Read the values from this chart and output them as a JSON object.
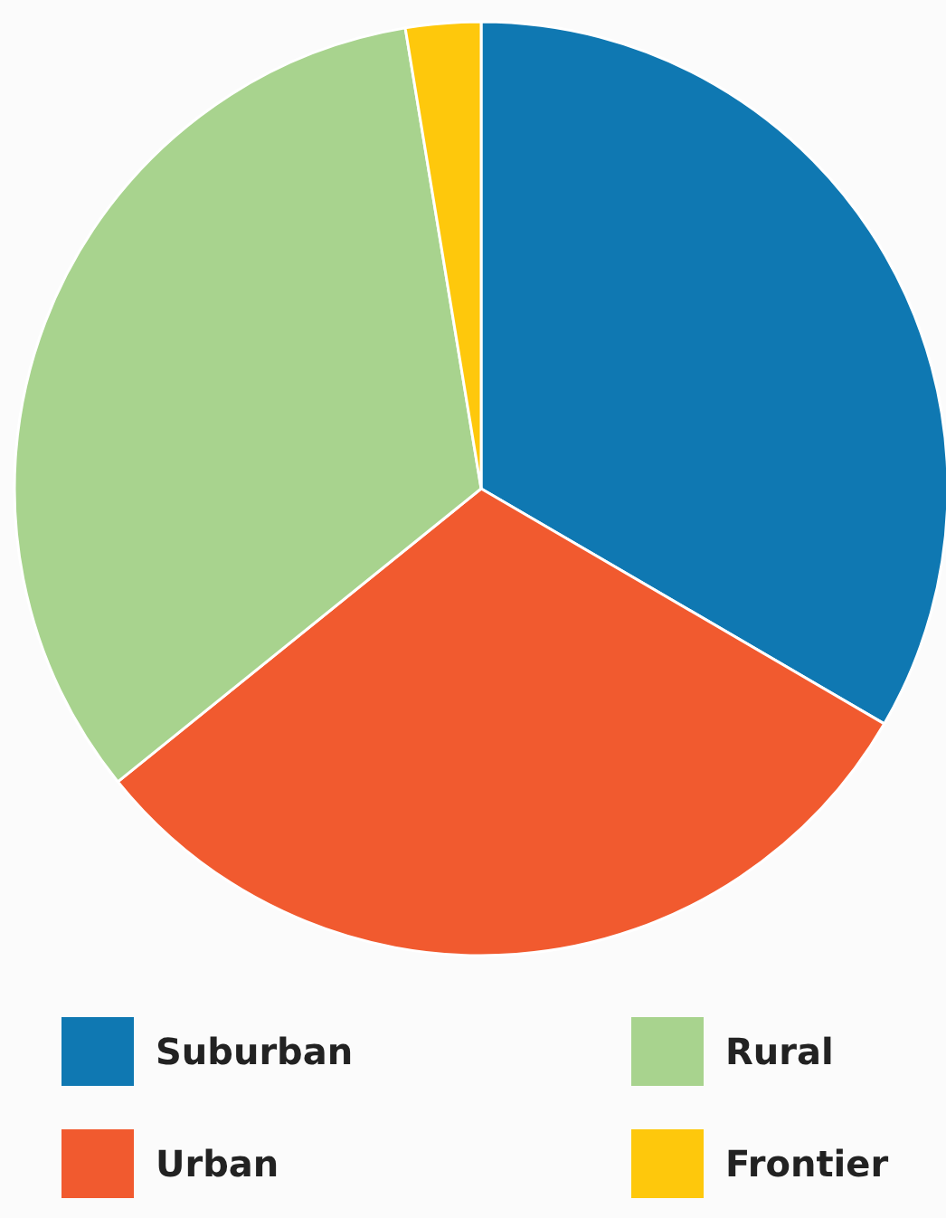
{
  "chart_data": {
    "type": "pie",
    "categories": [
      "Suburban",
      "Urban",
      "Rural",
      "Frontier"
    ],
    "values": [
      33.4,
      30.8,
      33.2,
      2.6
    ],
    "colors": [
      "#0f78b2",
      "#f15a2f",
      "#a8d38e",
      "#fec80c"
    ],
    "legend": "bottom"
  }
}
